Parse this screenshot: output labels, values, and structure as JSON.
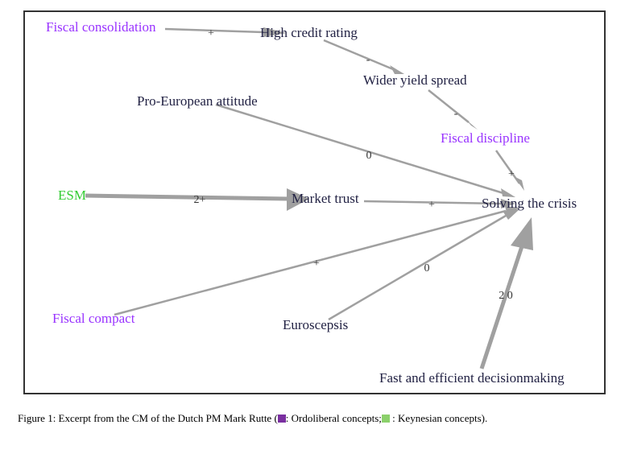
{
  "colors": {
    "ordoliberal": "#9933ff",
    "keynesian": "#33cc33",
    "neutral": "#222244",
    "edge": "#a0a0a0",
    "frame": "#333333",
    "swatch_ordoliberal": "#7a2fa0",
    "swatch_keynesian": "#8bd06b"
  },
  "nodes": {
    "fiscal_consolidation": "Fiscal consolidation",
    "high_credit_rating": "High credit rating",
    "wider_yield_spread": "Wider yield spread",
    "pro_european_attitude": "Pro-European attitude",
    "fiscal_discipline": "Fiscal discipline",
    "esm": "ESM",
    "market_trust": "Market trust",
    "solving_the_crisis": "Solving the crisis",
    "fiscal_compact": "Fiscal compact",
    "euroscepsis": "Euroscepsis",
    "fast_decisionmaking": "Fast and efficient decisionmaking"
  },
  "edges": [
    {
      "from": "Fiscal consolidation",
      "to": "High credit rating",
      "sign": "+"
    },
    {
      "from": "High credit rating",
      "to": "Wider yield spread",
      "sign": "-"
    },
    {
      "from": "Wider yield spread",
      "to": "Fiscal discipline",
      "sign": "-"
    },
    {
      "from": "Fiscal discipline",
      "to": "Solving the crisis",
      "sign": "+"
    },
    {
      "from": "Pro-European attitude",
      "to": "Solving the crisis",
      "sign": "0"
    },
    {
      "from": "ESM",
      "to": "Market trust",
      "sign": "2+"
    },
    {
      "from": "Market trust",
      "to": "Solving the crisis",
      "sign": "+"
    },
    {
      "from": "Fiscal compact",
      "to": "Solving the crisis",
      "sign": "+"
    },
    {
      "from": "Euroscepsis",
      "to": "Solving the crisis",
      "sign": "0"
    },
    {
      "from": "Fast and efficient decisionmaking",
      "to": "Solving the crisis",
      "sign": "2 0"
    }
  ],
  "caption": {
    "prefix": "Figure 1: Excerpt from the CM of the Dutch PM Mark Rutte (",
    "ordoliberal": ": Ordoliberal concepts;",
    "keynesian": " : Keynesian concepts)."
  }
}
